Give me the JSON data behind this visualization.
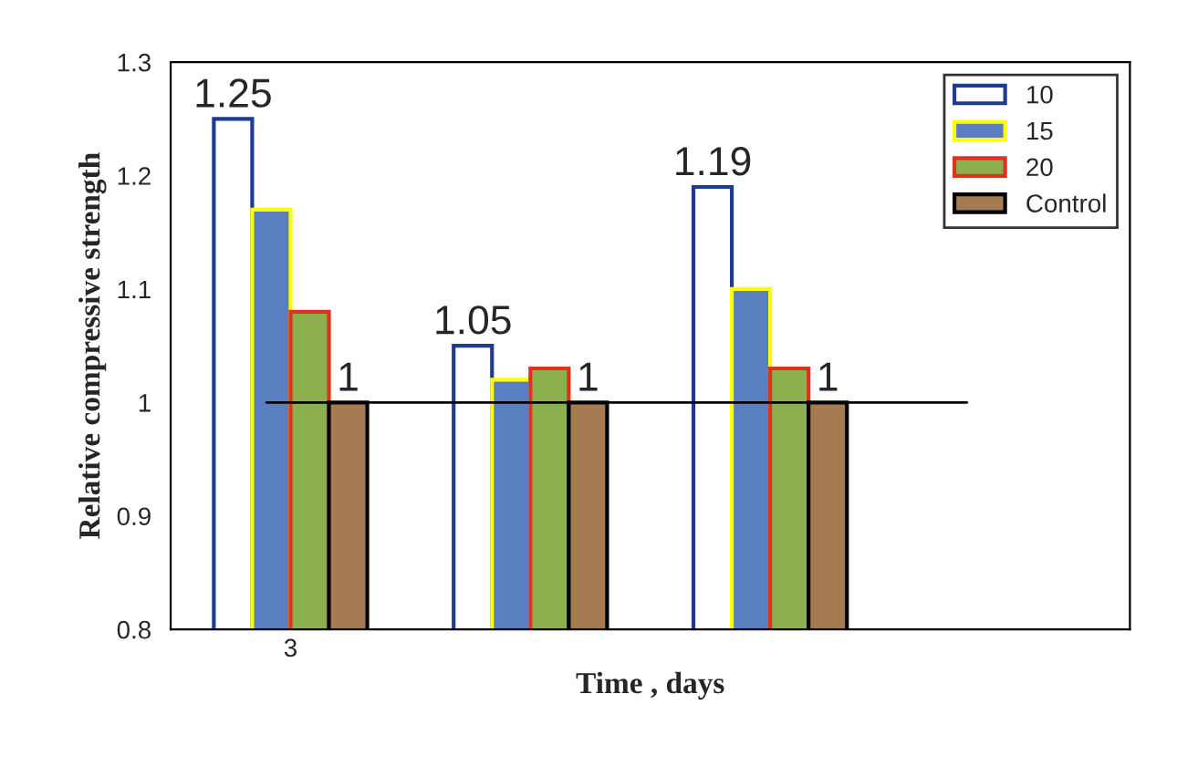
{
  "chart_data": {
    "type": "bar",
    "xlabel": "Time , days",
    "ylabel": "Relative compressive strength",
    "categories": [
      "3",
      null,
      null,
      null
    ],
    "series": [
      {
        "name": "10",
        "color": "#ffffff",
        "values": [
          1.25,
          1.05,
          1.19,
          null
        ],
        "value_labels": [
          "1.25",
          "1.05",
          "1.19",
          null
        ]
      },
      {
        "name": "15",
        "color": "#5a7fc0",
        "values": [
          1.17,
          1.02,
          1.1,
          null
        ]
      },
      {
        "name": "20",
        "color": "#8db04f",
        "values": [
          1.08,
          1.03,
          1.03,
          null
        ]
      },
      {
        "name": "Control",
        "color": "#a57c52",
        "values": [
          1,
          1,
          1,
          null
        ],
        "value_labels": [
          "1",
          "1",
          "1",
          null
        ]
      }
    ],
    "ylim": [
      0.8,
      1.3
    ],
    "yticks": [
      0.8,
      0.9,
      1,
      1.1,
      1.2,
      1.3
    ],
    "ref_lines": [
      {
        "axis": "y",
        "value": 1,
        "color": "#000000"
      }
    ],
    "grid": false,
    "legend": "top right"
  }
}
